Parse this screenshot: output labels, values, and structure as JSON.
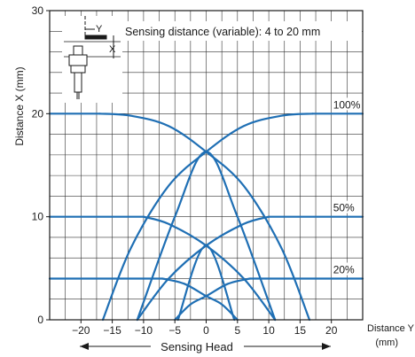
{
  "chart_data": {
    "type": "line",
    "xlabel": "Distance Y",
    "xunit": "(mm)",
    "ylabel": "Distance X (mm)",
    "xlim": [
      -25,
      25
    ],
    "ylim": [
      0,
      30
    ],
    "x_ticks": [
      "−20",
      "−15",
      "−10",
      "−5",
      "0",
      "5",
      "10",
      "15",
      "20"
    ],
    "y_ticks": [
      "0",
      "10",
      "20",
      "30"
    ],
    "grid": true,
    "line_color": "#1f6fb4",
    "annotation": "Sensing distance (variable):  4 to 20 mm",
    "inset_labels": {
      "y": "Y",
      "x": "X"
    },
    "span_label": "Sensing Head",
    "series": [
      {
        "name": "100%",
        "label_at": [
          20,
          20
        ],
        "flat": [
          [
            -25,
            20
          ],
          [
            -17,
            20
          ]
        ],
        "flat_right": [
          [
            17,
            20
          ],
          [
            25,
            20
          ]
        ]
      },
      {
        "name": "50%",
        "label_at": [
          20,
          10
        ],
        "flat": [
          [
            -25,
            10
          ],
          [
            -10,
            10
          ]
        ],
        "flat_right": [
          [
            10,
            10
          ],
          [
            25,
            10
          ]
        ]
      },
      {
        "name": "20%",
        "label_at": [
          20,
          4
        ],
        "flat": [
          [
            -25,
            4
          ],
          [
            -7,
            4
          ]
        ],
        "flat_right": [
          [
            7,
            4
          ],
          [
            25,
            4
          ]
        ]
      }
    ],
    "curves": [
      {
        "level": "100%",
        "points": [
          [
            -16.5,
            0
          ],
          [
            -12,
            7
          ],
          [
            -6,
            13
          ],
          [
            0,
            16.3
          ],
          [
            6,
            18.8
          ],
          [
            12,
            19.8
          ],
          [
            17,
            20
          ]
        ]
      },
      {
        "level": "100%",
        "points": [
          [
            16.5,
            0
          ],
          [
            12,
            7
          ],
          [
            6,
            13
          ],
          [
            0,
            16.3
          ],
          [
            -6,
            18.8
          ],
          [
            -12,
            19.8
          ],
          [
            -17,
            20
          ]
        ]
      },
      {
        "level": "100%",
        "points": [
          [
            -11,
            0
          ],
          [
            -5,
            10
          ],
          [
            0,
            16.3
          ],
          [
            5,
            10
          ],
          [
            11,
            0
          ]
        ]
      },
      {
        "level": "50%",
        "points": [
          [
            -11,
            0
          ],
          [
            -6,
            4
          ],
          [
            0,
            7.2
          ],
          [
            6,
            9.3
          ],
          [
            10,
            10
          ]
        ]
      },
      {
        "level": "50%",
        "points": [
          [
            11,
            0
          ],
          [
            6,
            4
          ],
          [
            0,
            7.2
          ],
          [
            -6,
            9.3
          ],
          [
            -10,
            10
          ]
        ]
      },
      {
        "level": "50%",
        "points": [
          [
            -4.5,
            0
          ],
          [
            0,
            7.2
          ],
          [
            4.5,
            0
          ]
        ]
      },
      {
        "level": "20%",
        "points": [
          [
            -5,
            0
          ],
          [
            -2.5,
            1.5
          ],
          [
            0,
            2.3
          ],
          [
            3.5,
            3.5
          ],
          [
            7,
            4
          ]
        ]
      },
      {
        "level": "20%",
        "points": [
          [
            5,
            0
          ],
          [
            2.5,
            1.5
          ],
          [
            0,
            2.3
          ],
          [
            -3.5,
            3.5
          ],
          [
            -7,
            4
          ]
        ]
      }
    ]
  }
}
